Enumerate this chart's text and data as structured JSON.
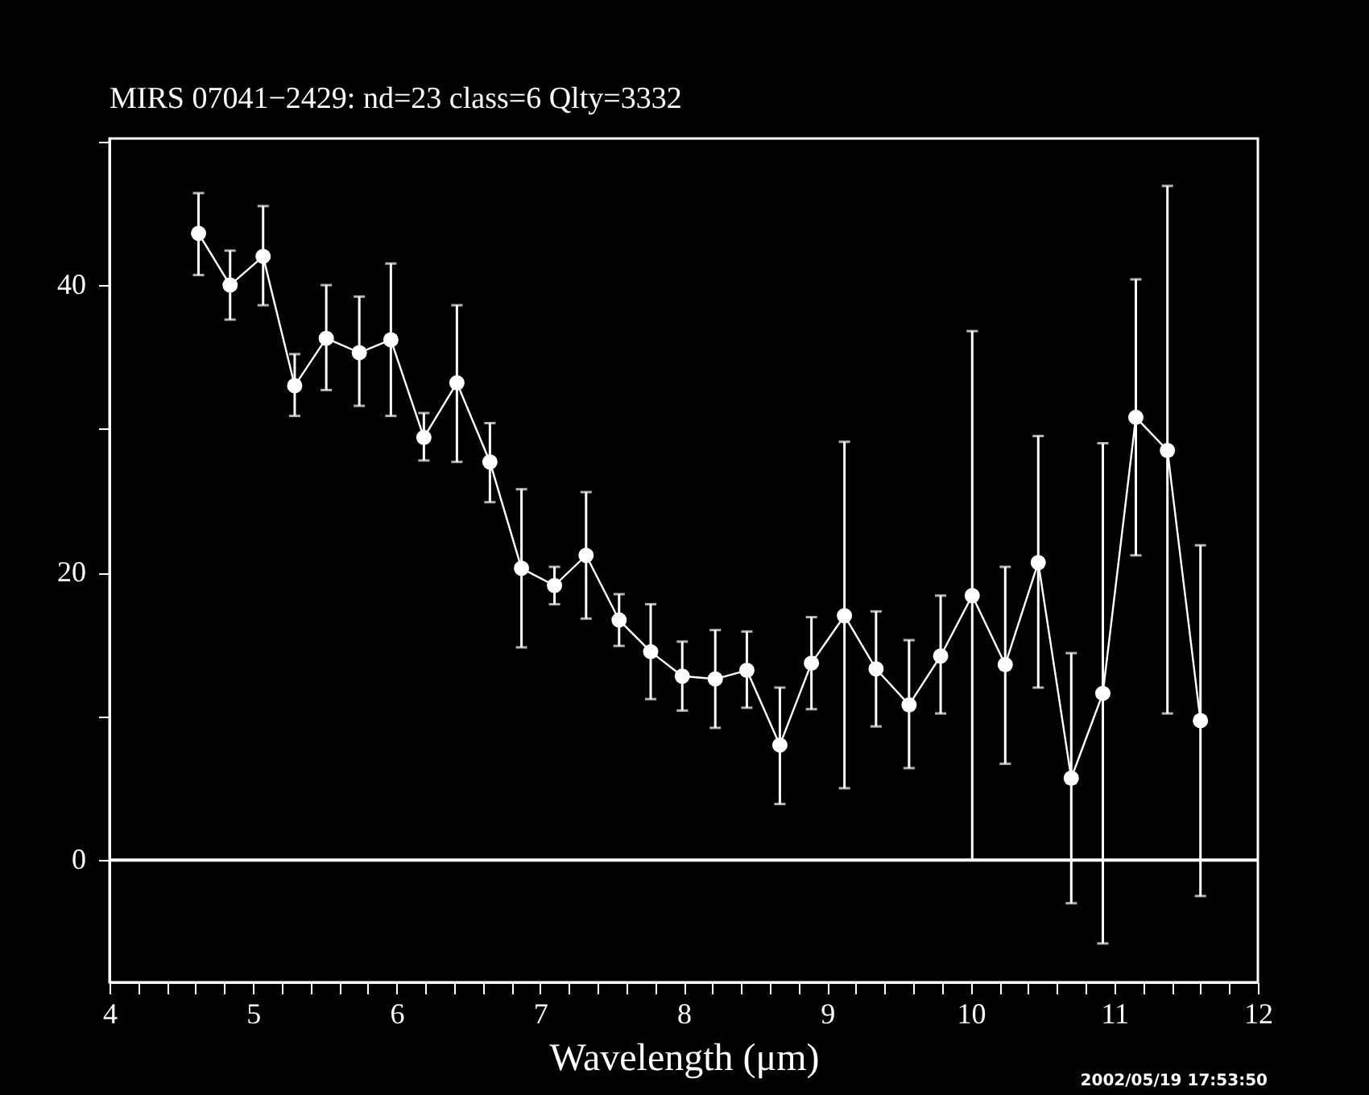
{
  "chart_data": {
    "type": "line",
    "title": "MIRS 07041−2429:     nd=23    class=6    Qlty=3332",
    "xlabel": "Wavelength (μm)",
    "annotations": [
      "2002/05/19 17:53:50"
    ],
    "x": [
      4.62,
      4.84,
      5.07,
      5.29,
      5.51,
      5.74,
      5.96,
      6.19,
      6.42,
      6.65,
      6.87,
      7.1,
      7.32,
      7.55,
      7.77,
      7.99,
      8.22,
      8.44,
      8.67,
      8.89,
      9.12,
      9.34,
      9.57,
      9.79,
      10.01,
      10.24,
      10.47,
      10.7,
      10.92,
      11.15,
      11.37,
      11.6
    ],
    "series": [
      {
        "color": "#ffffff",
        "values": [
          43.6,
          40.0,
          42.0,
          33.0,
          36.3,
          35.3,
          36.2,
          29.4,
          33.2,
          27.7,
          20.3,
          19.1,
          21.2,
          16.7,
          14.5,
          12.8,
          12.6,
          13.2,
          8.0,
          13.7,
          17.0,
          13.3,
          10.8,
          14.2,
          18.4,
          13.6,
          20.7,
          5.7,
          11.6,
          30.8,
          28.5,
          9.7
        ],
        "errors": [
          [
            40.7,
            46.4
          ],
          [
            37.6,
            42.4
          ],
          [
            38.6,
            45.5
          ],
          [
            30.9,
            35.2
          ],
          [
            32.7,
            40.0
          ],
          [
            31.6,
            39.2
          ],
          [
            30.9,
            41.5
          ],
          [
            27.8,
            31.1
          ],
          [
            27.7,
            38.6
          ],
          [
            24.9,
            30.4
          ],
          [
            14.8,
            25.8
          ],
          [
            17.8,
            20.4
          ],
          [
            16.8,
            25.6
          ],
          [
            14.9,
            18.5
          ],
          [
            11.2,
            17.8
          ],
          [
            10.4,
            15.2
          ],
          [
            9.2,
            16.0
          ],
          [
            10.6,
            15.9
          ],
          [
            3.9,
            12.0
          ],
          [
            10.5,
            16.9
          ],
          [
            5.0,
            29.1
          ],
          [
            9.3,
            17.3
          ],
          [
            6.4,
            15.3
          ],
          [
            10.2,
            18.4
          ],
          [
            0.0,
            36.8
          ],
          [
            6.7,
            20.4
          ],
          [
            12.0,
            29.5
          ],
          [
            -3.0,
            14.4
          ],
          [
            -5.8,
            29.0
          ],
          [
            21.2,
            40.4
          ],
          [
            10.2,
            46.9
          ],
          [
            -2.5,
            21.9
          ]
        ]
      }
    ],
    "xlim": [
      4,
      12
    ],
    "ylim": [
      -8.5,
      50.2
    ],
    "xticks": [
      4,
      {
        "value": 4.2,
        "label": null
      },
      {
        "value": 4.4,
        "label": null
      },
      {
        "value": 4.6,
        "label": null
      },
      {
        "value": 4.8,
        "label": null
      },
      5,
      {
        "value": 5.2,
        "label": null
      },
      {
        "value": 5.4,
        "label": null
      },
      {
        "value": 5.6,
        "label": null
      },
      {
        "value": 5.8,
        "label": null
      },
      6,
      {
        "value": 6.2,
        "label": null
      },
      {
        "value": 6.4,
        "label": null
      },
      {
        "value": 6.6,
        "label": null
      },
      {
        "value": 6.8,
        "label": null
      },
      7,
      {
        "value": 7.2,
        "label": null
      },
      {
        "value": 7.4,
        "label": null
      },
      {
        "value": 7.6,
        "label": null
      },
      {
        "value": 7.8,
        "label": null
      },
      8,
      {
        "value": 8.2,
        "label": null
      },
      {
        "value": 8.4,
        "label": null
      },
      {
        "value": 8.6,
        "label": null
      },
      {
        "value": 8.8,
        "label": null
      },
      9,
      {
        "value": 9.2,
        "label": null
      },
      {
        "value": 9.4,
        "label": null
      },
      {
        "value": 9.6,
        "label": null
      },
      {
        "value": 9.8,
        "label": null
      },
      10,
      {
        "value": 10.2,
        "label": null
      },
      {
        "value": 10.4,
        "label": null
      },
      {
        "value": 10.6,
        "label": null
      },
      {
        "value": 10.8,
        "label": null
      },
      11,
      {
        "value": 11.2,
        "label": null
      },
      {
        "value": 11.4,
        "label": null
      },
      {
        "value": 11.6,
        "label": null
      },
      {
        "value": 11.8,
        "label": null
      },
      12
    ],
    "yticks": [
      0,
      {
        "value": 10,
        "label": null
      },
      20,
      {
        "value": 30,
        "label": null
      },
      40,
      {
        "value": 50,
        "label": null
      }
    ],
    "ref_lines": [
      {
        "axis": "y",
        "value": 0,
        "color": "#ffffff"
      }
    ],
    "marker": "circle",
    "line_style": "solid",
    "grid": false
  }
}
